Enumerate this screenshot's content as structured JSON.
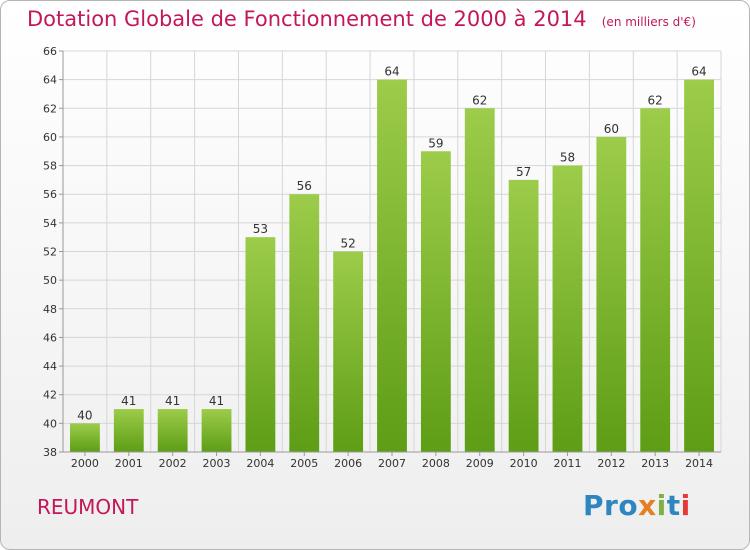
{
  "chart_data": {
    "type": "bar",
    "title": "Dotation Globale de Fonctionnement de 2000 à 2014",
    "subtitle": "(en milliers d'€)",
    "categories": [
      "2000",
      "2001",
      "2002",
      "2003",
      "2004",
      "2005",
      "2006",
      "2007",
      "2008",
      "2009",
      "2010",
      "2011",
      "2012",
      "2013",
      "2014"
    ],
    "values": [
      40,
      41,
      41,
      41,
      53,
      56,
      52,
      64,
      59,
      62,
      57,
      58,
      60,
      62,
      64
    ],
    "data_labels": [
      "40",
      "41",
      "41",
      "41",
      "53",
      "56",
      "52",
      "64",
      "59",
      "62",
      "57",
      "58",
      "60",
      "62",
      "64"
    ],
    "ylim": [
      38,
      66
    ],
    "yticks": [
      "38",
      "40",
      "42",
      "44",
      "46",
      "48",
      "50",
      "52",
      "54",
      "56",
      "58",
      "60",
      "62",
      "64",
      "66"
    ],
    "grid": true,
    "bar_color_top": "#9ccc4a",
    "bar_color_bottom": "#5e9d16",
    "grid_color": "#d6d6d6"
  },
  "footer": {
    "city": "REUMONT",
    "logo_letters": [
      {
        "ch": "P",
        "color": "#2e86c1"
      },
      {
        "ch": "r",
        "color": "#2e86c1"
      },
      {
        "ch": "o",
        "color": "#2e86c1"
      },
      {
        "ch": "x",
        "color": "#e67e22"
      },
      {
        "ch": "i",
        "color": "#7cb342"
      },
      {
        "ch": "t",
        "color": "#2e86c1"
      },
      {
        "ch": "i",
        "color": "#e53935"
      }
    ]
  }
}
